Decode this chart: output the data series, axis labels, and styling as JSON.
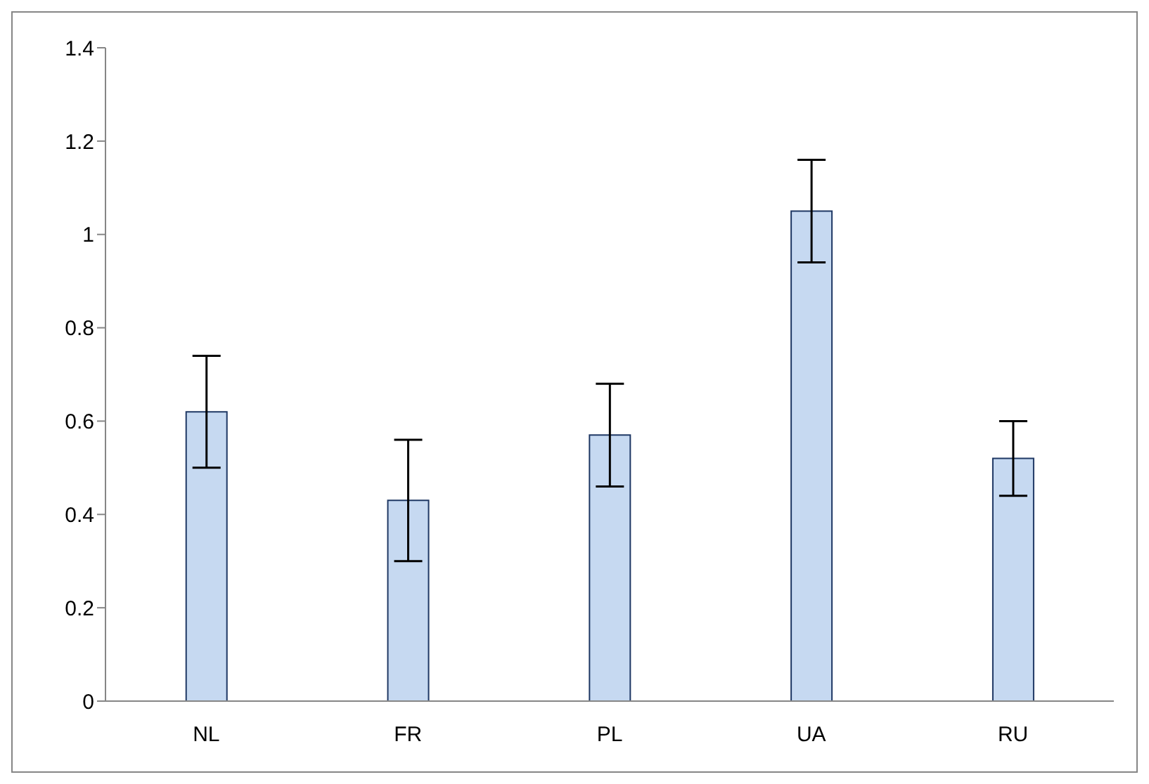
{
  "chart_data": {
    "type": "bar",
    "categories": [
      "NL",
      "FR",
      "PL",
      "UA",
      "RU"
    ],
    "values": [
      0.62,
      0.43,
      0.57,
      1.05,
      0.52
    ],
    "errors": [
      0.12,
      0.13,
      0.11,
      0.11,
      0.08
    ],
    "color": "#c6d9f1",
    "ylim": [
      0,
      1.4
    ],
    "yticks": [
      0,
      0.2,
      0.4,
      0.6,
      0.8,
      1,
      1.2,
      1.4
    ],
    "grid": false,
    "legend": false
  }
}
